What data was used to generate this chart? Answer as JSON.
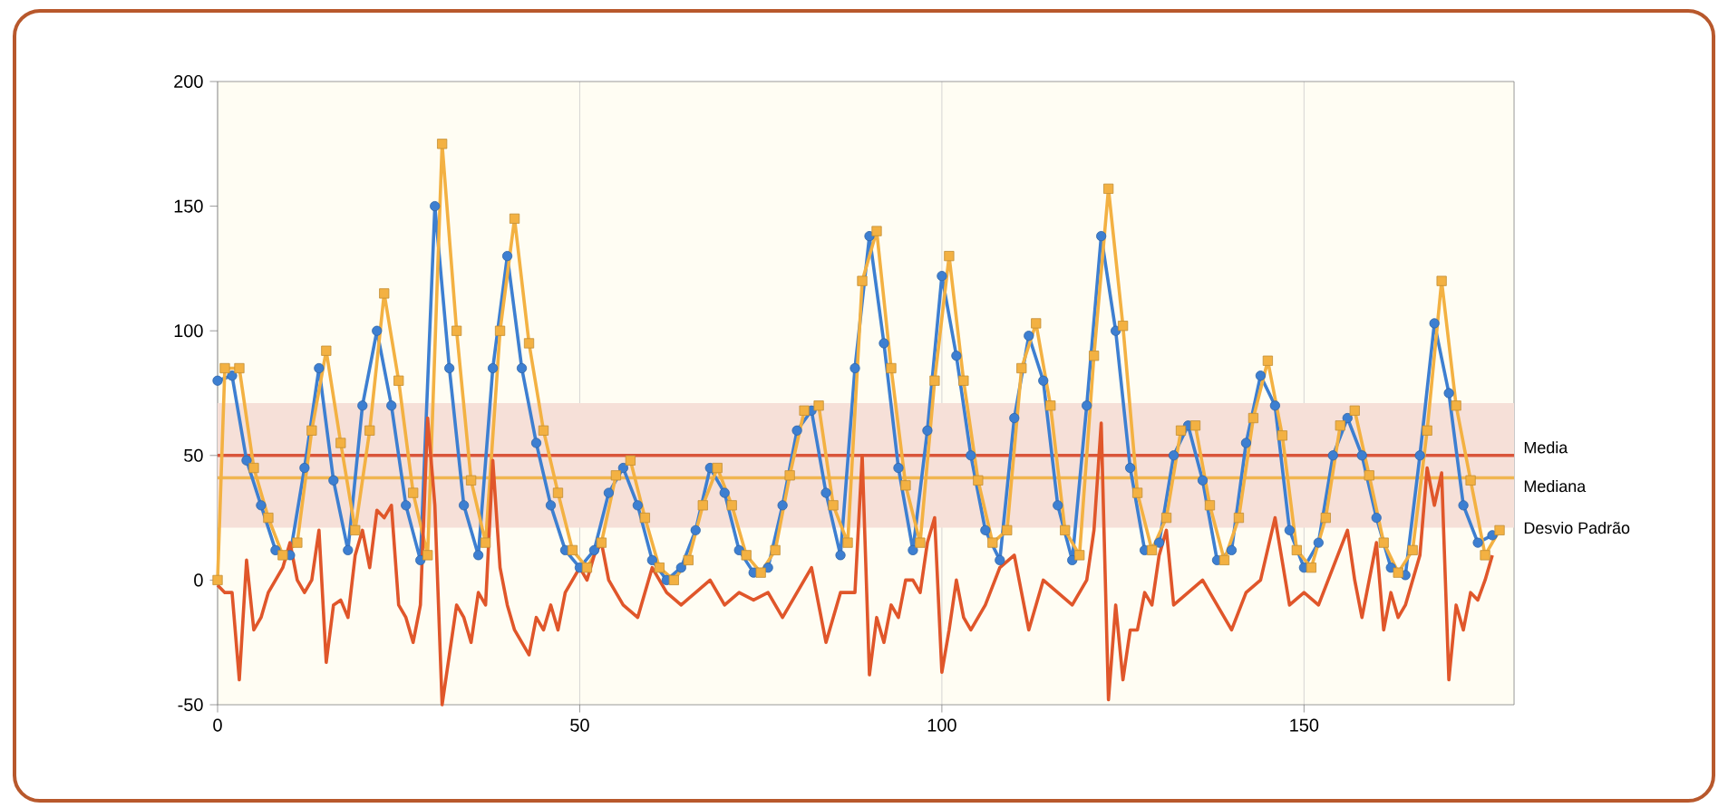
{
  "chart_data": {
    "type": "line",
    "xlim": [
      0,
      179
    ],
    "ylim": [
      -50,
      200
    ],
    "xticks": [
      0,
      50,
      100,
      150
    ],
    "yticks": [
      -50,
      0,
      50,
      100,
      150,
      200
    ],
    "grid": "x",
    "line_style": "solid",
    "series": [
      {
        "color": "#3d7fd1",
        "marker": "circle",
        "x": [
          0,
          2,
          4,
          6,
          8,
          10,
          12,
          14,
          16,
          18,
          20,
          22,
          24,
          26,
          28,
          30,
          32,
          34,
          36,
          38,
          40,
          42,
          44,
          46,
          48,
          50,
          52,
          54,
          56,
          58,
          60,
          62,
          64,
          66,
          68,
          70,
          72,
          74,
          76,
          78,
          80,
          82,
          84,
          86,
          88,
          90,
          92,
          94,
          96,
          98,
          100,
          102,
          104,
          106,
          108,
          110,
          112,
          114,
          116,
          118,
          120,
          122,
          124,
          126,
          128,
          130,
          132,
          134,
          136,
          138,
          140,
          142,
          144,
          146,
          148,
          150,
          152,
          154,
          156,
          158,
          160,
          162,
          164,
          166,
          168,
          170,
          172,
          174,
          176
        ],
        "values": [
          80,
          82,
          48,
          30,
          12,
          10,
          45,
          85,
          40,
          12,
          70,
          100,
          70,
          30,
          8,
          150,
          85,
          30,
          10,
          85,
          130,
          85,
          55,
          30,
          12,
          5,
          12,
          35,
          45,
          30,
          8,
          0,
          5,
          20,
          45,
          35,
          12,
          3,
          5,
          30,
          60,
          68,
          35,
          10,
          85,
          138,
          95,
          45,
          12,
          60,
          122,
          90,
          50,
          20,
          8,
          65,
          98,
          80,
          30,
          8,
          70,
          138,
          100,
          45,
          12,
          15,
          50,
          62,
          40,
          8,
          12,
          55,
          82,
          70,
          20,
          5,
          15,
          50,
          65,
          50,
          25,
          5,
          2,
          50,
          103,
          75,
          30,
          15,
          18
        ]
      },
      {
        "color": "#f3b142",
        "marker": "square",
        "x": [
          0,
          1,
          3,
          5,
          7,
          9,
          11,
          13,
          15,
          17,
          19,
          21,
          23,
          25,
          27,
          29,
          31,
          33,
          35,
          37,
          39,
          41,
          43,
          45,
          47,
          49,
          51,
          53,
          55,
          57,
          59,
          61,
          63,
          65,
          67,
          69,
          71,
          73,
          75,
          77,
          79,
          81,
          83,
          85,
          87,
          89,
          91,
          93,
          95,
          97,
          99,
          101,
          103,
          105,
          107,
          109,
          111,
          113,
          115,
          117,
          119,
          121,
          123,
          125,
          127,
          129,
          131,
          133,
          135,
          137,
          139,
          141,
          143,
          145,
          147,
          149,
          151,
          153,
          155,
          157,
          159,
          161,
          163,
          165,
          167,
          169,
          171,
          173,
          175,
          177
        ],
        "values": [
          0,
          85,
          85,
          45,
          25,
          10,
          15,
          60,
          92,
          55,
          20,
          60,
          115,
          80,
          35,
          10,
          175,
          100,
          40,
          15,
          100,
          145,
          95,
          60,
          35,
          12,
          5,
          15,
          42,
          48,
          25,
          5,
          0,
          8,
          30,
          45,
          30,
          10,
          3,
          12,
          42,
          68,
          70,
          30,
          15,
          120,
          140,
          85,
          38,
          15,
          80,
          130,
          80,
          40,
          15,
          20,
          85,
          103,
          70,
          20,
          10,
          90,
          157,
          102,
          35,
          12,
          25,
          60,
          62,
          30,
          8,
          25,
          65,
          88,
          58,
          12,
          5,
          25,
          62,
          68,
          42,
          15,
          3,
          12,
          60,
          120,
          70,
          40,
          10,
          20
        ]
      },
      {
        "color": "#e0562a",
        "marker": "none",
        "x": [
          0,
          1,
          2,
          3,
          4,
          5,
          6,
          7,
          8,
          9,
          10,
          11,
          12,
          13,
          14,
          15,
          16,
          17,
          18,
          19,
          20,
          21,
          22,
          23,
          24,
          25,
          26,
          27,
          28,
          29,
          30,
          31,
          32,
          33,
          34,
          35,
          36,
          37,
          38,
          39,
          40,
          41,
          42,
          43,
          44,
          45,
          46,
          47,
          48,
          49,
          50,
          51,
          52,
          53,
          54,
          55,
          56,
          58,
          60,
          62,
          64,
          66,
          68,
          70,
          72,
          74,
          76,
          78,
          80,
          82,
          84,
          86,
          88,
          89,
          90,
          91,
          92,
          93,
          94,
          95,
          96,
          97,
          98,
          99,
          100,
          101,
          102,
          103,
          104,
          106,
          108,
          110,
          112,
          114,
          116,
          118,
          120,
          121,
          122,
          123,
          124,
          125,
          126,
          127,
          128,
          129,
          130,
          131,
          132,
          134,
          136,
          138,
          140,
          142,
          144,
          146,
          148,
          150,
          152,
          154,
          156,
          157,
          158,
          160,
          161,
          162,
          163,
          164,
          166,
          167,
          168,
          169,
          170,
          171,
          172,
          173,
          174,
          175,
          176
        ],
        "values": [
          -2,
          -5,
          -5,
          -40,
          8,
          -20,
          -15,
          -5,
          0,
          5,
          15,
          0,
          -5,
          0,
          20,
          -33,
          -10,
          -8,
          -15,
          10,
          20,
          5,
          28,
          25,
          30,
          -10,
          -15,
          -25,
          -10,
          65,
          30,
          -50,
          -30,
          -10,
          -15,
          -25,
          -5,
          -10,
          48,
          5,
          -10,
          -20,
          -25,
          -30,
          -15,
          -20,
          -10,
          -20,
          -5,
          0,
          5,
          0,
          10,
          15,
          0,
          -5,
          -10,
          -15,
          5,
          -5,
          -10,
          -5,
          0,
          -10,
          -5,
          -8,
          -5,
          -15,
          -5,
          5,
          -25,
          -5,
          -5,
          50,
          -38,
          -15,
          -25,
          -10,
          -15,
          0,
          0,
          -5,
          15,
          25,
          -37,
          -20,
          0,
          -15,
          -20,
          -10,
          5,
          10,
          -20,
          0,
          -5,
          -10,
          0,
          20,
          63,
          -48,
          -10,
          -40,
          -20,
          -20,
          -5,
          -10,
          10,
          20,
          -10,
          -5,
          0,
          -10,
          -20,
          -5,
          0,
          25,
          -10,
          -5,
          -10,
          5,
          20,
          0,
          -15,
          15,
          -20,
          -5,
          -15,
          -10,
          10,
          45,
          30,
          43,
          -40,
          -10,
          -20,
          -5,
          -8,
          0,
          10
        ]
      }
    ],
    "ref_lines": [
      {
        "axis": "y",
        "value": 50,
        "label": "Media",
        "color": "#d9553a"
      },
      {
        "axis": "y",
        "value": 41,
        "label": "Mediana",
        "color": "#f0b550"
      }
    ],
    "bands": [
      {
        "axis": "y",
        "from": 21,
        "to": 71,
        "label": "Desvio Padrão",
        "color": "#f6e0d8"
      }
    ]
  }
}
